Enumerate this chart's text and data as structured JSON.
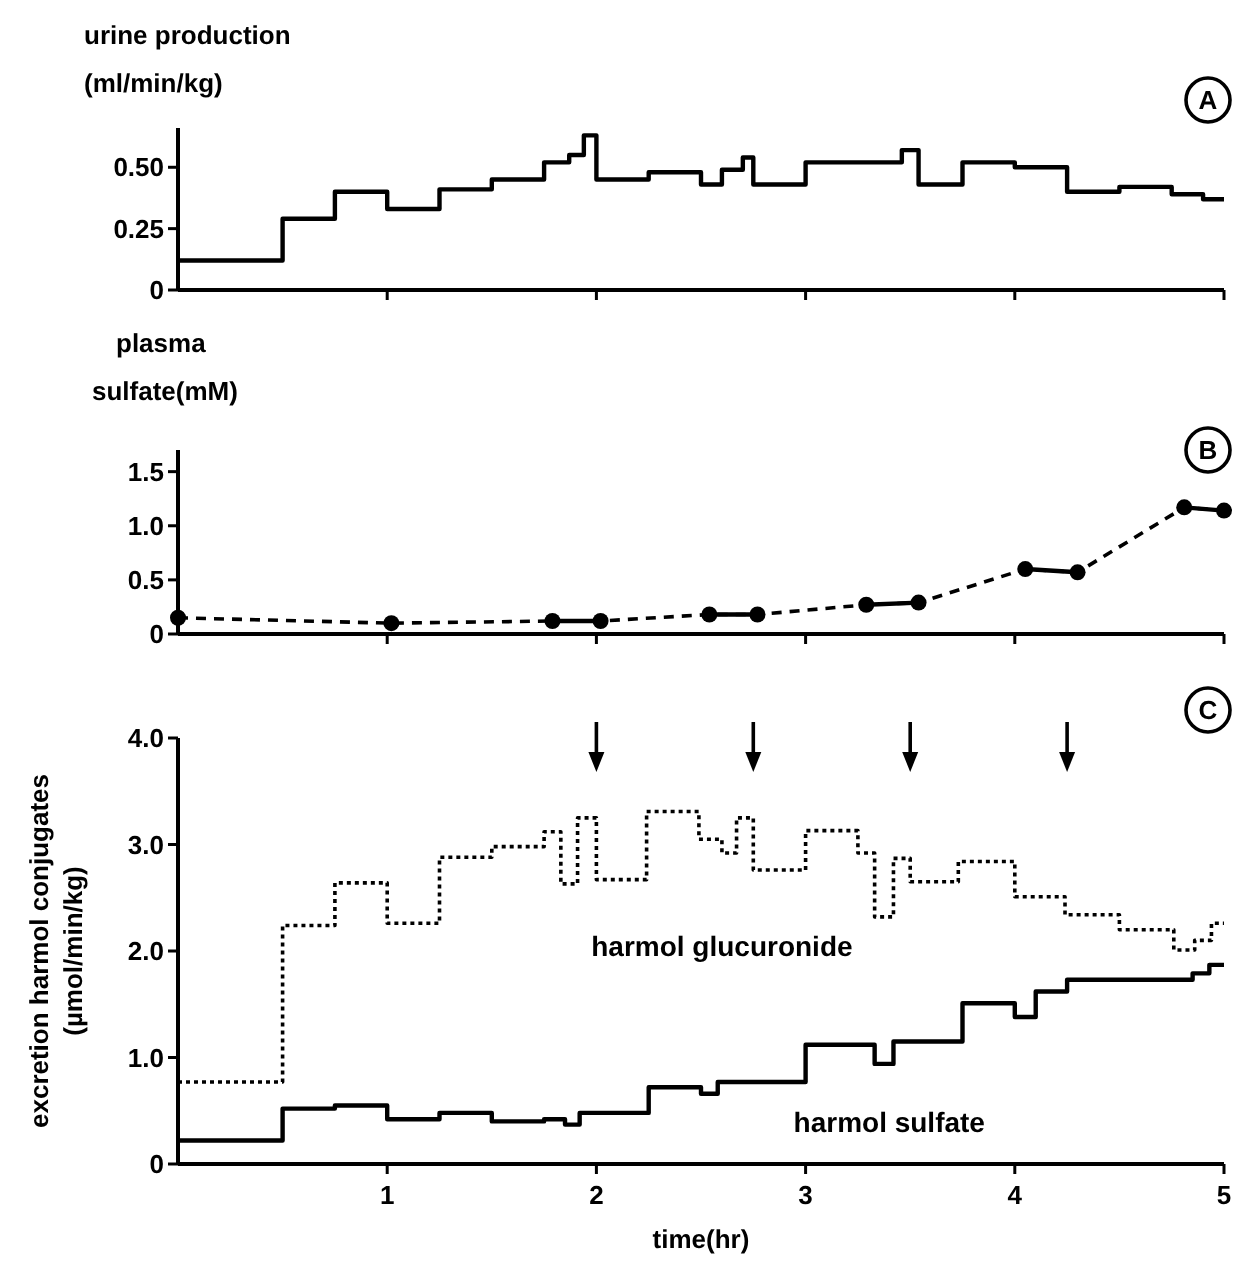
{
  "chart_data": [
    {
      "type": "step",
      "ylabel": "urine production\n(ml/min/kg)",
      "annotations": [
        "A"
      ],
      "xlim": [
        0,
        5
      ],
      "xticks": [
        {
          "value": 1,
          "label": null
        },
        {
          "value": 2,
          "label": null
        },
        {
          "value": 3,
          "label": null
        },
        {
          "value": 4,
          "label": null
        },
        {
          "value": 5,
          "label": null
        }
      ],
      "ylim": [
        0,
        0.66
      ],
      "yticks": [
        {
          "value": 0,
          "label": "0"
        },
        {
          "value": 0.25,
          "label": "0.25"
        },
        {
          "value": 0.5,
          "label": "0.50"
        }
      ],
      "tick_labels": "y",
      "series": [
        {
          "color": "#000000",
          "line_style": "solid",
          "x": [
            0,
            0.5,
            0.75,
            1,
            1.25,
            1.5,
            1.75,
            1.87,
            1.94,
            2,
            2.25,
            2.5,
            2.6,
            2.7,
            2.75,
            3,
            3.46,
            3.54,
            3.75,
            4,
            4.25,
            4.5,
            4.75,
            4.9,
            5
          ],
          "values": [
            0.12,
            0.29,
            0.4,
            0.33,
            0.41,
            0.45,
            0.52,
            0.55,
            0.63,
            0.45,
            0.48,
            0.43,
            0.49,
            0.54,
            0.43,
            0.52,
            0.57,
            0.43,
            0.52,
            0.5,
            0.4,
            0.42,
            0.39,
            0.37,
            0.37
          ]
        }
      ]
    },
    {
      "type": "line",
      "ylabel": "plasma\nsulfate(mM)",
      "annotations": [
        "B"
      ],
      "xlim": [
        0,
        5
      ],
      "xticks": [
        {
          "value": 1,
          "label": null
        },
        {
          "value": 2,
          "label": null
        },
        {
          "value": 3,
          "label": null
        },
        {
          "value": 4,
          "label": null
        },
        {
          "value": 5,
          "label": null
        }
      ],
      "ylim": [
        0,
        1.7
      ],
      "yticks": [
        {
          "value": 0,
          "label": "0"
        },
        {
          "value": 0.5,
          "label": "0.5"
        },
        {
          "value": 1,
          "label": "1.0"
        },
        {
          "value": 1.5,
          "label": "1.5"
        }
      ],
      "tick_labels": "y",
      "series": [
        {
          "color": "#000000",
          "line_style": "dashed",
          "marker": "circle",
          "x": [
            0,
            1.02,
            1.79,
            2.02,
            2.54,
            2.77,
            3.29,
            3.54,
            4.05,
            4.3,
            4.81,
            5
          ],
          "values": [
            0.15,
            0.1,
            0.12,
            0.12,
            0.18,
            0.18,
            0.27,
            0.29,
            0.6,
            0.57,
            1.17,
            1.14
          ]
        },
        {
          "color": "#000000",
          "line_style": "solid",
          "marker": "none",
          "x": [
            1.79,
            2.02
          ],
          "values": [
            0.12,
            0.12
          ]
        },
        {
          "color": "#000000",
          "line_style": "solid",
          "marker": "none",
          "x": [
            2.54,
            2.77
          ],
          "values": [
            0.18,
            0.18
          ]
        },
        {
          "color": "#000000",
          "line_style": "solid",
          "marker": "none",
          "x": [
            3.29,
            3.54
          ],
          "values": [
            0.27,
            0.29
          ]
        },
        {
          "color": "#000000",
          "line_style": "solid",
          "marker": "none",
          "x": [
            4.05,
            4.3
          ],
          "values": [
            0.6,
            0.57
          ]
        },
        {
          "color": "#000000",
          "line_style": "solid",
          "marker": "none",
          "x": [
            4.81,
            5
          ],
          "values": [
            1.17,
            1.14
          ]
        }
      ]
    },
    {
      "type": "step",
      "xlabel": "time(hr)",
      "ylabel": "excretion harmol conjugates\n(µmol/min/kg)",
      "annotations": [
        "C"
      ],
      "xlim": [
        0,
        5
      ],
      "xticks": [
        1,
        2,
        3,
        4,
        5
      ],
      "ylim": [
        0,
        4
      ],
      "yticks": [
        {
          "value": 0,
          "label": "0"
        },
        {
          "value": 1,
          "label": "1.0"
        },
        {
          "value": 2,
          "label": "2.0"
        },
        {
          "value": 3,
          "label": "3.0"
        },
        {
          "value": 4,
          "label": "4.0"
        }
      ],
      "series": [
        {
          "name": "harmol glucuronide",
          "color": "#000000",
          "line_style": "dotted",
          "x": [
            0,
            0.5,
            0.75,
            1,
            1.25,
            1.5,
            1.75,
            1.83,
            1.91,
            2,
            2.24,
            2.49,
            2.6,
            2.67,
            2.75,
            3,
            3.25,
            3.33,
            3.42,
            3.5,
            3.73,
            4,
            4.24,
            4.5,
            4.76,
            4.86,
            4.94,
            5
          ],
          "values": [
            0.77,
            2.24,
            2.64,
            2.26,
            2.88,
            2.98,
            3.12,
            2.63,
            3.25,
            2.67,
            3.31,
            3.05,
            2.92,
            3.25,
            2.76,
            3.13,
            2.92,
            2.32,
            2.87,
            2.65,
            2.84,
            2.51,
            2.34,
            2.2,
            2.01,
            2.1,
            2.26,
            2.26
          ]
        },
        {
          "name": "harmol sulfate",
          "color": "#000000",
          "line_style": "solid",
          "x": [
            0,
            0.5,
            0.75,
            1,
            1.25,
            1.5,
            1.75,
            1.85,
            1.92,
            2.25,
            2.5,
            2.58,
            3,
            3.33,
            3.42,
            3.75,
            4,
            4.1,
            4.25,
            4.85,
            4.93,
            5
          ],
          "values": [
            0.22,
            0.52,
            0.55,
            0.42,
            0.48,
            0.4,
            0.42,
            0.37,
            0.48,
            0.72,
            0.66,
            0.77,
            1.12,
            0.94,
            1.15,
            1.51,
            1.38,
            1.62,
            1.73,
            1.79,
            1.87,
            1.87
          ]
        }
      ]
    }
  ]
}
